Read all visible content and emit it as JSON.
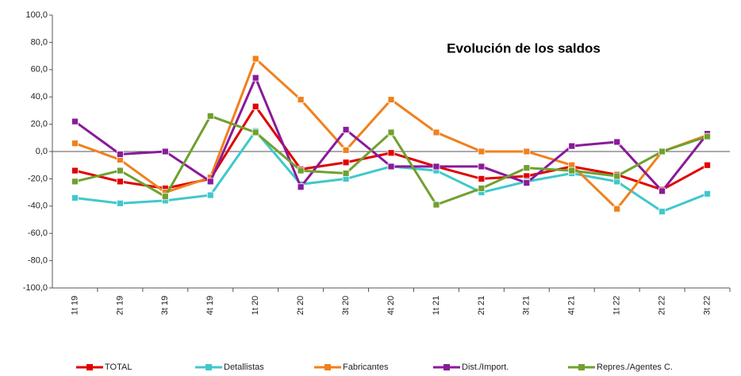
{
  "chart_data": {
    "type": "line",
    "title": "Evolución de los saldos",
    "categories": [
      "1t 19",
      "2t 19",
      "3t 19",
      "4t 19",
      "1t 20",
      "2t 20",
      "3t 20",
      "4t 20",
      "1t 21",
      "2t 21",
      "3t 21",
      "4t 21",
      "1t 22",
      "2t 22",
      "3t 22"
    ],
    "series": [
      {
        "name": "TOTAL",
        "color": "#e00000",
        "values": [
          -14,
          -22,
          -27,
          -20,
          33,
          -13,
          -8,
          -1,
          -11,
          -20,
          -18,
          -11,
          -17,
          -28,
          -10
        ]
      },
      {
        "name": "Detallistas",
        "color": "#40c8cc",
        "values": [
          -34,
          -38,
          -36,
          -32,
          15,
          -24,
          -20,
          -11,
          -14,
          -30,
          -22,
          -16,
          -22,
          -44,
          -31
        ]
      },
      {
        "name": "Fabricantes",
        "color": "#f0801c",
        "values": [
          6,
          -6,
          -30,
          -19,
          68,
          38,
          1,
          38,
          14,
          0,
          0,
          -10,
          -42,
          0,
          12
        ]
      },
      {
        "name": "Dist./Import.",
        "color": "#8a1a9a",
        "values": [
          22,
          -2,
          0,
          -22,
          54,
          -26,
          16,
          -11,
          -11,
          -11,
          -23,
          4,
          7,
          -29,
          13
        ]
      },
      {
        "name": "Repres./Agentes C.",
        "color": "#70a030",
        "values": [
          -22,
          -14,
          -33,
          26,
          14,
          -14,
          -16,
          14,
          -39,
          -27,
          -12,
          -14,
          -18,
          0,
          11
        ]
      }
    ],
    "ylim": [
      -100,
      100
    ],
    "yticks": [
      {
        "value": -100,
        "label": "-100,0"
      },
      {
        "value": -80,
        "label": "-80,0"
      },
      {
        "value": -60,
        "label": "-60,0"
      },
      {
        "value": -40,
        "label": "-40,0"
      },
      {
        "value": -20,
        "label": "-20,0"
      },
      {
        "value": 0,
        "label": "0,0"
      },
      {
        "value": 20,
        "label": "20,0"
      },
      {
        "value": 40,
        "label": "40,0"
      },
      {
        "value": 60,
        "label": "60,0"
      },
      {
        "value": 80,
        "label": "80,0"
      },
      {
        "value": 100,
        "label": "100,0"
      }
    ],
    "grid": false,
    "legend": "bottom"
  }
}
